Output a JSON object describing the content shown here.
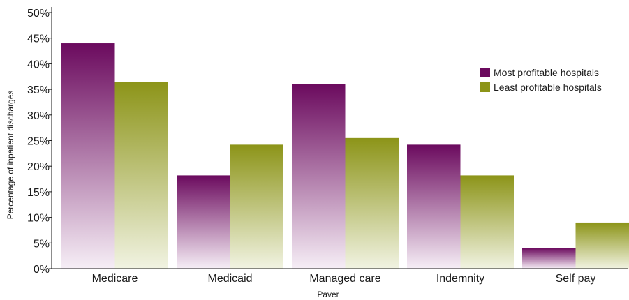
{
  "chart_data": {
    "type": "bar",
    "title": "",
    "xlabel": "Paver",
    "ylabel": "Percentage of inpatient discharges",
    "categories": [
      "Medicare",
      "Medicaid",
      "Managed care",
      "Indemnity",
      "Self pay"
    ],
    "series": [
      {
        "name": "Most profitable hospitals",
        "color": "#6b0a5e",
        "values": [
          44,
          18.2,
          36,
          24.2,
          4
        ]
      },
      {
        "name": "Least profitable hospitals",
        "color": "#8c9418",
        "values": [
          36.5,
          24.2,
          25.5,
          18.2,
          9
        ]
      }
    ],
    "ylim": [
      0,
      50
    ],
    "yticks": [
      "0%",
      "5%",
      "10%",
      "15%",
      "20%",
      "25%",
      "30%",
      "35%",
      "40%",
      "45%",
      "50%"
    ],
    "grid": false,
    "legend_position": "top-right"
  }
}
